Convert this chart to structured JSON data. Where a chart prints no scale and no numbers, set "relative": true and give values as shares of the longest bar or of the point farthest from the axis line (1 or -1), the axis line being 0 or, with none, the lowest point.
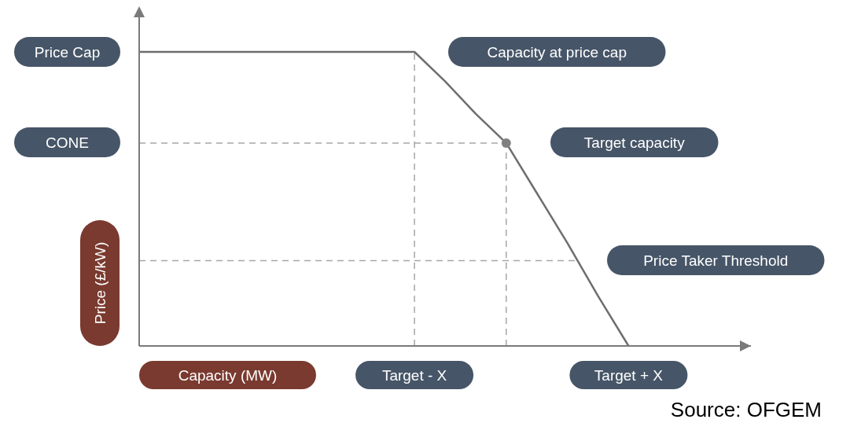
{
  "chart_data": {
    "type": "line",
    "relative": true,
    "xlabel": "Capacity (MW)",
    "ylabel": "Price (£/kW)",
    "categories": [
      null,
      null,
      null,
      null,
      null,
      null,
      null,
      null,
      null,
      "Target - X",
      null,
      null,
      null,
      null,
      null,
      null,
      "Target + X",
      null,
      null,
      null,
      null
    ],
    "series": [
      {
        "color": "#6e6e6e",
        "values": [
          1,
          1,
          1,
          1,
          1,
          1,
          1,
          1,
          1,
          1,
          0.9,
          0.79,
          0.69,
          0.52,
          0.35,
          0.17,
          0,
          null,
          null,
          null,
          null
        ]
      },
      {
        "type": "scatter",
        "color": "#808080",
        "marker": "circle",
        "values": [
          null,
          null,
          null,
          null,
          null,
          null,
          null,
          null,
          null,
          null,
          null,
          null,
          0.69,
          null,
          null,
          null,
          null,
          null,
          null,
          null,
          null
        ]
      }
    ],
    "ref_lines": [
      {
        "axis": "y",
        "value": 0.69,
        "color": "#a6a6a6",
        "line_style": "dashed"
      },
      {
        "axis": "y",
        "value": 0.29,
        "color": "#a6a6a6",
        "line_style": "dashed"
      },
      {
        "axis": "x",
        "value": "Target - X",
        "color": "#a6a6a6",
        "line_style": "dashed"
      }
    ],
    "annotations": [
      "Price Cap",
      "CONE",
      "Capacity at price cap",
      "Target capacity",
      "Price Taker Threshold",
      "Source: OFGEM"
    ]
  }
}
